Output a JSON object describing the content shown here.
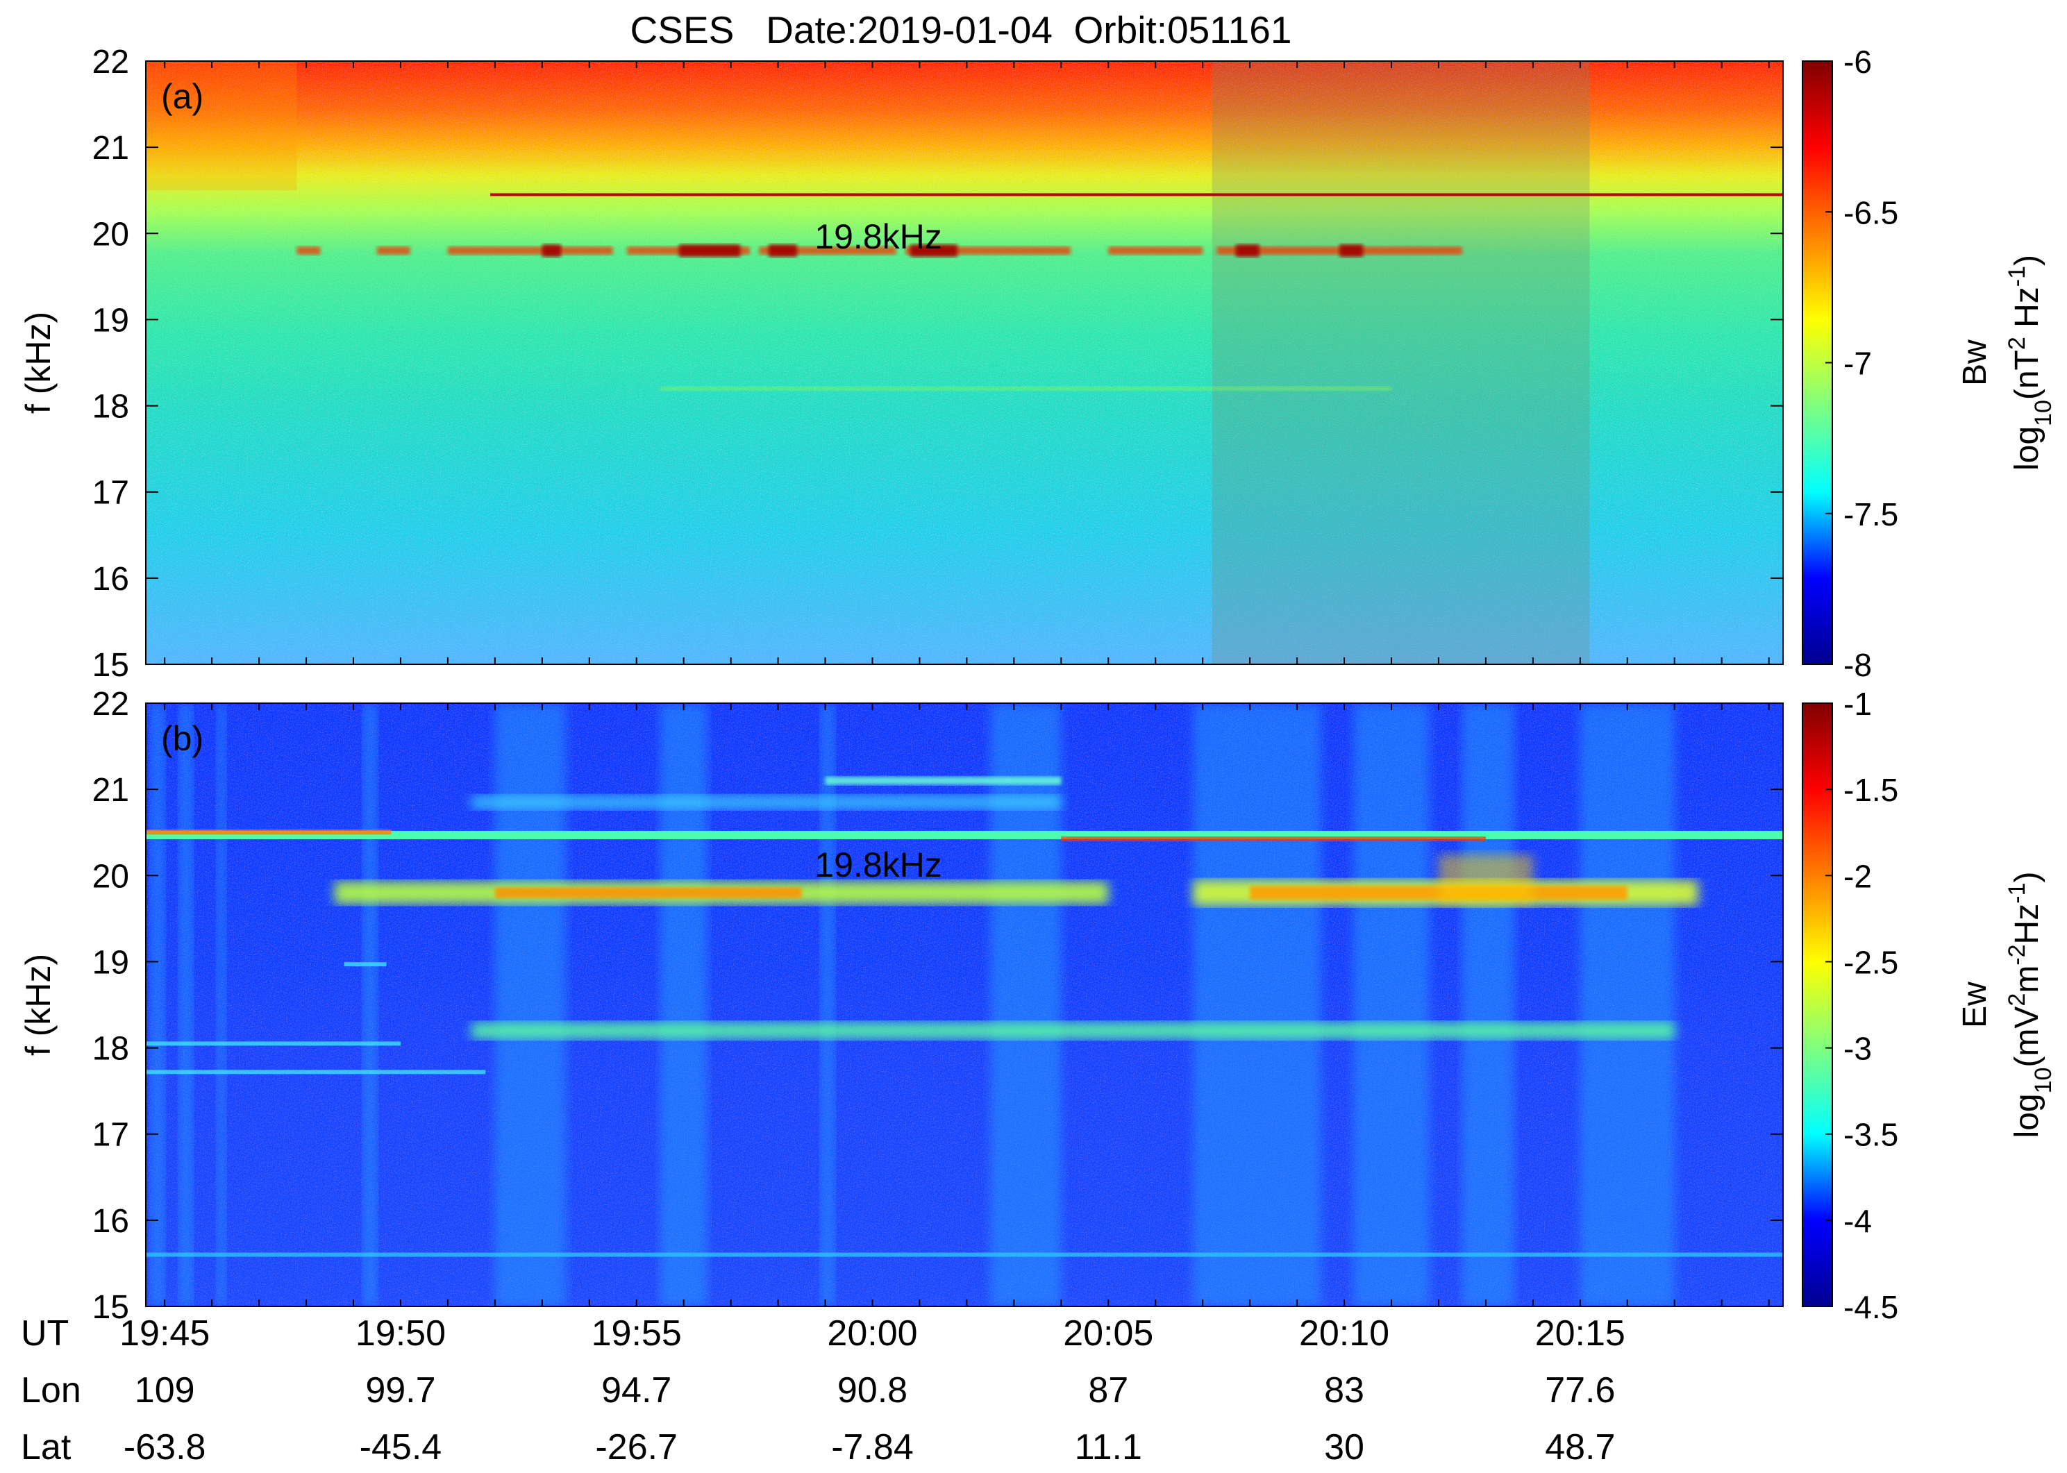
{
  "chart_data": {
    "type": "heatmap",
    "title": "CSES   Date:2019-01-04  Orbit:051161",
    "x_axis": {
      "row_labels": [
        "UT",
        "Lon",
        "Lat"
      ],
      "ut": [
        "19:45",
        "19:50",
        "19:55",
        "20:00",
        "20:05",
        "20:10",
        "20:15"
      ],
      "lon": [
        "109",
        "99.7",
        "94.7",
        "90.8",
        "87",
        "83",
        "77.6"
      ],
      "lat": [
        "-63.8",
        "-45.4",
        "-26.7",
        "-7.84",
        "11.1",
        "30",
        "48.7"
      ],
      "range_min": [
        44.6,
        79.3
      ]
    },
    "panels": [
      {
        "label": "(a)",
        "ylabel": "f (kHz)",
        "ylim": [
          15,
          22
        ],
        "yticks": [
          "15",
          "16",
          "17",
          "18",
          "19",
          "20",
          "21",
          "22"
        ],
        "annotation": "19.8kHz",
        "annotation_f": 19.97,
        "colorbar": {
          "name": "Bw",
          "unit_parts": [
            "log",
            "10",
            "(nT",
            "2",
            " Hz",
            "-1",
            ")"
          ],
          "range": [
            -8,
            -6
          ],
          "ticks": [
            "-6",
            "-6.5",
            "-7",
            "-7.5",
            "-8"
          ]
        },
        "signal_lines_khz": [
          19.8,
          20.45,
          18.2
        ],
        "shaded_interval_min": [
          67.2,
          75.2
        ]
      },
      {
        "label": "(b)",
        "ylabel": "f (kHz)",
        "ylim": [
          15,
          22
        ],
        "yticks": [
          "15",
          "16",
          "17",
          "18",
          "19",
          "20",
          "21",
          "22"
        ],
        "annotation": "19.8kHz",
        "annotation_f": 20.13,
        "colorbar": {
          "name": "Ew",
          "unit_parts": [
            "log",
            "10",
            "(mV",
            "2",
            "m",
            "-2",
            "Hz",
            "-1",
            ")"
          ],
          "range": [
            -4.5,
            -1
          ],
          "ticks": [
            "-1",
            "-1.5",
            "-2",
            "-2.5",
            "-3",
            "-3.5",
            "-4",
            "-4.5"
          ]
        },
        "signal_lines_khz": [
          19.8,
          20.45,
          18.2,
          20.9,
          21.1,
          15.6
        ]
      }
    ],
    "colormap": "jet",
    "colormap_stops": [
      "#00008f",
      "#0000ff",
      "#00ffff",
      "#7fff7f",
      "#ffff00",
      "#ff7f00",
      "#ff0000",
      "#800000"
    ]
  }
}
